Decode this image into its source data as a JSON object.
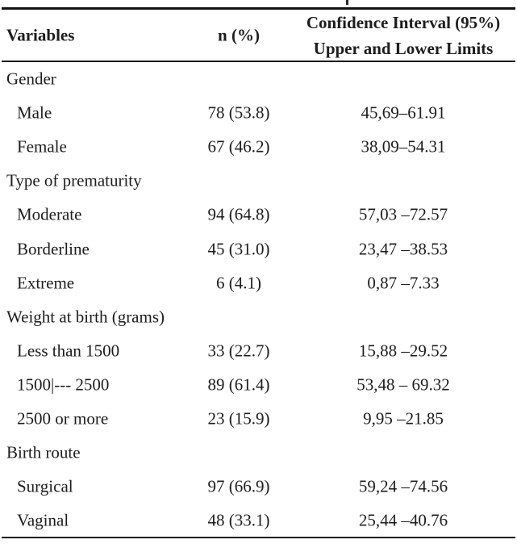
{
  "header": {
    "col1": "Variables",
    "col2": "n (%)",
    "col3_line1": "Confidence Interval (95%)",
    "col3_line2": "Upper and Lower Limits"
  },
  "rows": [
    {
      "type": "group",
      "label": "Gender"
    },
    {
      "type": "item",
      "label": "Male",
      "n": "78 (53.8)",
      "ci": "45,69–61.91"
    },
    {
      "type": "item",
      "label": "Female",
      "n": "67 (46.2)",
      "ci": "38,09–54.31"
    },
    {
      "type": "group",
      "label": "Type of prematurity"
    },
    {
      "type": "item",
      "label": "Moderate",
      "n": "94 (64.8)",
      "ci": "57,03 –72.57"
    },
    {
      "type": "item",
      "label": "Borderline",
      "n": "45 (31.0)",
      "ci": "23,47 –38.53"
    },
    {
      "type": "item",
      "label": "Extreme",
      "n": "6 (4.1)",
      "ci": "0,87 –7.33"
    },
    {
      "type": "group",
      "label": "Weight at birth (grams)"
    },
    {
      "type": "item",
      "label": "Less than 1500",
      "n": "33 (22.7)",
      "ci": "15,88 –29.52"
    },
    {
      "type": "item",
      "label": "1500|--- 2500",
      "n": "89 (61.4)",
      "ci": "53,48 – 69.32"
    },
    {
      "type": "item",
      "label": "2500 or more",
      "n": "23 (15.9)",
      "ci": "9,95 –21.85"
    },
    {
      "type": "group",
      "label": "Birth route"
    },
    {
      "type": "item",
      "label": "Surgical",
      "n": "97 (66.9)",
      "ci": "59,24 –74.56"
    },
    {
      "type": "item",
      "label": "Vaginal",
      "n": "48 (33.1)",
      "ci": "25,44 –40.76"
    }
  ],
  "colors": {
    "text": "#1d1d1d",
    "rule": "#141414",
    "background": "#ffffff"
  }
}
